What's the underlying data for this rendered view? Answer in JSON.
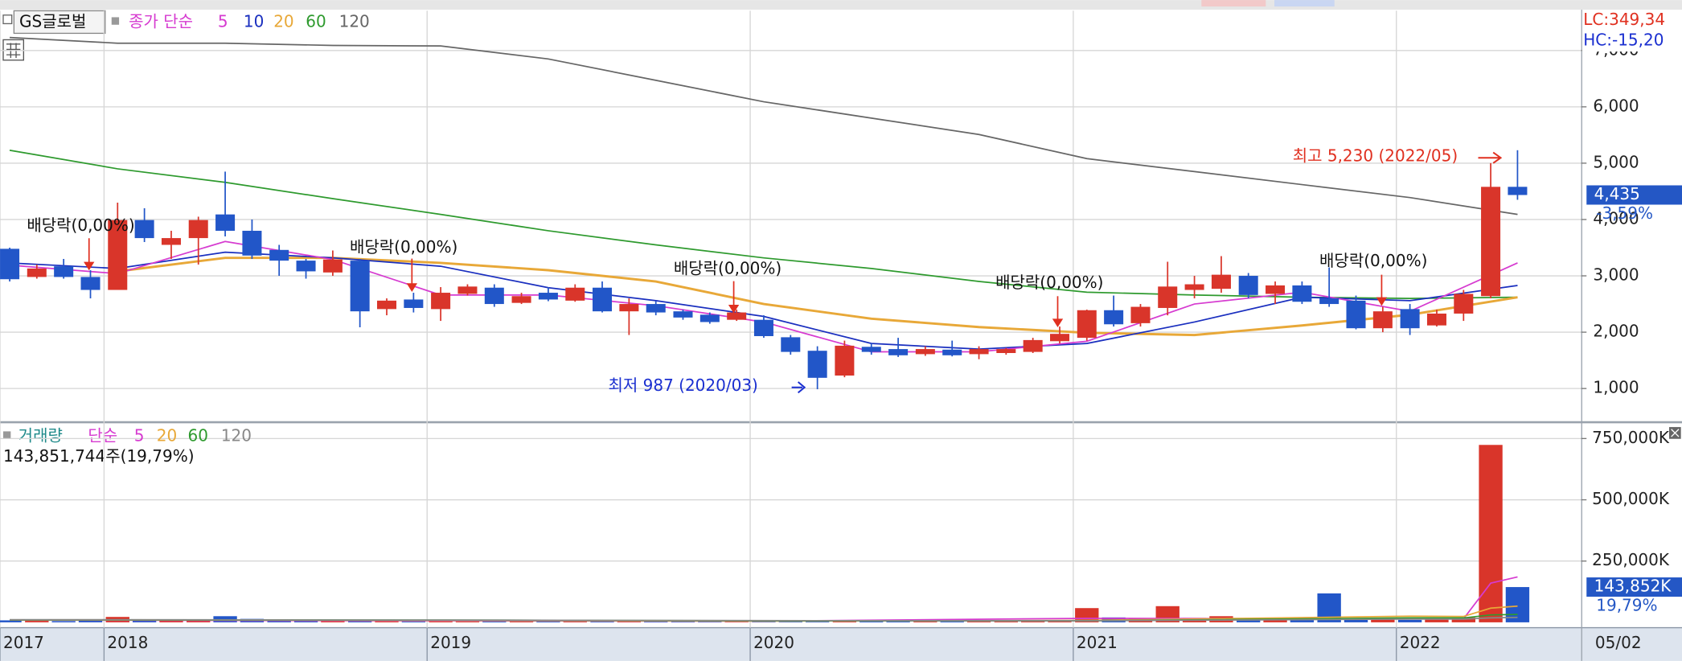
{
  "chart_data": [
    {
      "type": "candlestick",
      "stock": "GS글로벌",
      "ma_prefix": "종가 단순",
      "lc_label": "LC:349,34",
      "hc_label": "HC:-15,20",
      "last_price_label": "4,435",
      "last_change_label": "-3,59%",
      "dividend_labels": [
        "배당락(0,00%)",
        "배당락(0,00%)",
        "배당락(0,00%)",
        "배당락(0,00%)",
        "배당락(0,00%)"
      ],
      "low_label": "최저 987 (2020/03)",
      "high_label": "최고 5,230 (2022/05)",
      "up_color": "#d9352a",
      "down_color": "#2256c8",
      "grid": true,
      "xlim": [
        2017.678,
        2022.572
      ],
      "ylim": [
        430,
        7705
      ],
      "yticks": [
        {
          "value": 1000,
          "label": "1,000"
        },
        {
          "value": 2000,
          "label": "2,000"
        },
        {
          "value": 3000,
          "label": "3,000"
        },
        {
          "value": 4000,
          "label": "4,000"
        },
        {
          "value": 5000,
          "label": "5,000"
        },
        {
          "value": 6000,
          "label": "6,000"
        },
        {
          "value": 7000,
          "label": "7,000"
        }
      ],
      "x": [
        2017.708,
        2017.792,
        2017.875,
        2017.958,
        2018.042,
        2018.125,
        2018.208,
        2018.292,
        2018.375,
        2018.458,
        2018.542,
        2018.625,
        2018.708,
        2018.792,
        2018.875,
        2018.958,
        2019.042,
        2019.125,
        2019.208,
        2019.292,
        2019.375,
        2019.458,
        2019.542,
        2019.625,
        2019.708,
        2019.792,
        2019.875,
        2019.958,
        2020.042,
        2020.125,
        2020.208,
        2020.292,
        2020.375,
        2020.458,
        2020.542,
        2020.625,
        2020.708,
        2020.792,
        2020.875,
        2020.958,
        2021.042,
        2021.125,
        2021.208,
        2021.292,
        2021.375,
        2021.458,
        2021.542,
        2021.625,
        2021.708,
        2021.792,
        2021.875,
        2021.958,
        2022.042,
        2022.125,
        2022.208,
        2022.292,
        2022.375
      ],
      "open": [
        3480,
        2980,
        3170,
        2980,
        2750,
        3990,
        3550,
        3670,
        4090,
        3800,
        3460,
        3270,
        3060,
        3270,
        2410,
        2580,
        2410,
        2680,
        2790,
        2520,
        2700,
        2560,
        2790,
        2370,
        2500,
        2370,
        2310,
        2220,
        2220,
        1910,
        1670,
        1230,
        1740,
        1700,
        1610,
        1690,
        1610,
        1630,
        1650,
        1840,
        1900,
        2390,
        2160,
        2430,
        2750,
        2770,
        3000,
        2680,
        2830,
        2600,
        2560,
        2070,
        2410,
        2120,
        2330,
        2640,
        4580
      ],
      "high": [
        3500,
        3200,
        3300,
        3100,
        4300,
        4200,
        3800,
        4050,
        4850,
        4000,
        3550,
        3300,
        3450,
        3300,
        2600,
        2700,
        2800,
        2850,
        2850,
        2700,
        2800,
        2850,
        2900,
        2600,
        2550,
        2400,
        2350,
        2400,
        2300,
        1950,
        1750,
        1850,
        1800,
        1900,
        1750,
        1850,
        1750,
        1720,
        1900,
        2100,
        2400,
        2650,
        2500,
        3250,
        3000,
        3350,
        3050,
        2900,
        2900,
        3150,
        2650,
        2450,
        2500,
        2400,
        2750,
        5000,
        5230
      ],
      "low": [
        2900,
        2950,
        2950,
        2600,
        2750,
        3600,
        3300,
        3200,
        3700,
        3300,
        3000,
        2950,
        3000,
        2086,
        2300,
        2350,
        2200,
        2650,
        2450,
        2500,
        2550,
        2540,
        2350,
        1950,
        2300,
        2220,
        2150,
        2200,
        1900,
        1600,
        987,
        1200,
        1600,
        1560,
        1580,
        1570,
        1520,
        1600,
        1630,
        1800,
        1850,
        2100,
        2100,
        2300,
        2600,
        2700,
        2600,
        2500,
        2500,
        2450,
        2050,
        2000,
        1950,
        2100,
        2200,
        2600,
        4350
      ],
      "close": [
        2940,
        3130,
        2980,
        2750,
        3990,
        3670,
        3670,
        3990,
        3800,
        3360,
        3270,
        3080,
        3290,
        2370,
        2560,
        2430,
        2700,
        2810,
        2500,
        2640,
        2580,
        2790,
        2370,
        2500,
        2350,
        2260,
        2180,
        2350,
        1930,
        1650,
        1190,
        1760,
        1650,
        1590,
        1700,
        1590,
        1700,
        1700,
        1860,
        1970,
        2390,
        2140,
        2450,
        2810,
        2850,
        3020,
        2660,
        2830,
        2540,
        2500,
        2070,
        2370,
        2070,
        2330,
        2680,
        4580,
        4435
      ],
      "series": [
        {
          "name": "5",
          "color": "#d63bd0",
          "x": [
            2017.708,
            2018.042,
            2018.375,
            2018.708,
            2019.042,
            2019.375,
            2019.708,
            2020.042,
            2020.375,
            2020.708,
            2021.042,
            2021.375,
            2021.708,
            2022.042,
            2022.375
          ],
          "values": [
            3190,
            3040,
            3610,
            3290,
            2660,
            2660,
            2470,
            2180,
            1650,
            1650,
            1840,
            2500,
            2710,
            2370,
            3230
          ]
        },
        {
          "name": "10",
          "color": "#1a2fbf",
          "x": [
            2017.708,
            2018.042,
            2018.375,
            2018.708,
            2019.042,
            2019.375,
            2019.708,
            2020.042,
            2020.375,
            2020.708,
            2021.042,
            2021.375,
            2021.708,
            2022.042,
            2022.375
          ],
          "values": [
            3230,
            3130,
            3420,
            3320,
            3170,
            2790,
            2560,
            2280,
            1800,
            1700,
            1800,
            2180,
            2620,
            2560,
            2830
          ]
        },
        {
          "name": "20",
          "color": "#e8a838",
          "x": [
            2018.042,
            2018.375,
            2018.708,
            2019.042,
            2019.375,
            2019.708,
            2020.042,
            2020.375,
            2020.708,
            2021.042,
            2021.375,
            2021.708,
            2022.042,
            2022.375
          ],
          "values": [
            3080,
            3320,
            3320,
            3230,
            3100,
            2900,
            2500,
            2240,
            2090,
            1990,
            1950,
            2120,
            2310,
            2620
          ]
        },
        {
          "name": "60",
          "color": "#2e9a2e",
          "x": [
            2017.708,
            2018.042,
            2018.375,
            2018.708,
            2019.042,
            2019.375,
            2019.708,
            2020.042,
            2020.375,
            2020.708,
            2021.042,
            2021.375,
            2021.708,
            2022.042,
            2022.375
          ],
          "values": [
            5230,
            4900,
            4660,
            4370,
            4090,
            3800,
            3550,
            3320,
            3130,
            2900,
            2710,
            2660,
            2620,
            2600,
            2620
          ]
        },
        {
          "name": "120",
          "color": "#666666",
          "x": [
            2017.708,
            2018.042,
            2018.375,
            2018.708,
            2019.042,
            2019.375,
            2019.708,
            2020.042,
            2020.375,
            2020.708,
            2021.042,
            2021.375,
            2021.708,
            2022.042,
            2022.375
          ],
          "values": [
            7230,
            7130,
            7130,
            7090,
            7080,
            6850,
            6470,
            6090,
            5800,
            5510,
            5080,
            4850,
            4620,
            4390,
            4090
          ]
        }
      ]
    },
    {
      "type": "bar",
      "label": "거래량",
      "label_color": "#1f8a8a",
      "ma_prefix": "단순",
      "summary": "143,851,744주(19,79%)",
      "last_volume_label": "143,852K",
      "last_volume_change": "19,79%",
      "date_label": "05/02",
      "grid": true,
      "xlim": [
        2017.678,
        2022.572
      ],
      "xticks": [
        {
          "value": 2017.678,
          "label": "2017"
        },
        2018,
        2019,
        2020,
        2021,
        2022
      ],
      "ylim": [
        0,
        810000
      ],
      "yticks": [
        {
          "value": 250000,
          "label": "250,000K"
        },
        {
          "value": 500000,
          "label": "500,000K"
        },
        {
          "value": 750000,
          "label": "750,000K"
        }
      ],
      "values": [
        8000,
        6000,
        5000,
        7000,
        22000,
        12000,
        9000,
        10000,
        25000,
        14000,
        8000,
        6000,
        7000,
        10000,
        5000,
        4000,
        6000,
        4000,
        4000,
        3000,
        3000,
        4000,
        5000,
        4000,
        3000,
        3000,
        3000,
        3000,
        5000,
        6000,
        9000,
        7000,
        4000,
        4000,
        3000,
        3000,
        3000,
        3000,
        5000,
        6000,
        58000,
        20000,
        15000,
        66000,
        18000,
        25000,
        12000,
        14000,
        16000,
        118000,
        15000,
        12000,
        10000,
        11000,
        20000,
        724000,
        143852
      ],
      "series": [
        {
          "name": "5",
          "color": "#d63bd0",
          "x": [
            2017.708,
            2019.042,
            2020.042,
            2021.042,
            2022.042,
            2022.208,
            2022.292,
            2022.375
          ],
          "values": [
            9000,
            6000,
            5000,
            16000,
            14000,
            15000,
            160000,
            185000
          ]
        },
        {
          "name": "20",
          "color": "#e8a838",
          "x": [
            2017.708,
            2019.042,
            2020.042,
            2021.042,
            2022.042,
            2022.208,
            2022.292,
            2022.375
          ],
          "values": [
            10000,
            8000,
            5000,
            8000,
            25000,
            24000,
            58000,
            66000
          ]
        },
        {
          "name": "60",
          "color": "#2e9a2e",
          "x": [
            2017.708,
            2019.042,
            2020.042,
            2021.042,
            2022.042,
            2022.208,
            2022.292,
            2022.375
          ],
          "values": [
            10000,
            9000,
            6000,
            6000,
            18000,
            18000,
            30000,
            32000
          ]
        },
        {
          "name": "120",
          "color": "#888888",
          "x": [
            2017.708,
            2019.042,
            2020.042,
            2021.042,
            2022.042,
            2022.208,
            2022.292,
            2022.375
          ],
          "values": [
            11000,
            9000,
            7000,
            6000,
            13000,
            13000,
            18000,
            20000
          ]
        }
      ]
    }
  ]
}
